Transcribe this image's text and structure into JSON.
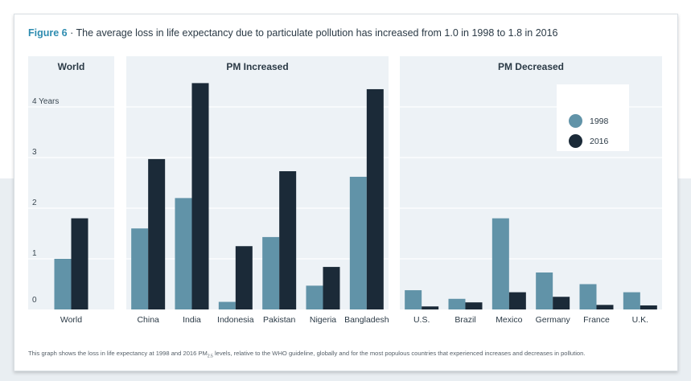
{
  "figure": {
    "label": "Figure 6",
    "separator": " · ",
    "title": "The average loss in life expectancy due to particulate pollution has increased from 1.0 in 1998 to 1.8 in 2016",
    "caption_before": "This graph shows the loss in life expectancy at 1998 and 2016 PM",
    "caption_sub": "2.5",
    "caption_after": " levels, relative to the WHO guideline, globally and for the most populous countries that experienced increases and decreases in pollution."
  },
  "colors": {
    "series_1998": "#6193a8",
    "series_2016": "#1b2a38",
    "panel_bg": "#edf2f6",
    "gridline": "#ffffff"
  },
  "chart_data": {
    "type": "bar",
    "ylim": [
      0,
      4
    ],
    "yticks": [
      {
        "value": 0,
        "label": "0"
      },
      {
        "value": 1,
        "label": "1"
      },
      {
        "value": 2,
        "label": "2"
      },
      {
        "value": 3,
        "label": "3"
      },
      {
        "value": 4,
        "label": "4 Years"
      }
    ],
    "grid": true,
    "legend_position": "top-right of PM Decreased panel",
    "series": [
      {
        "name": "1998"
      },
      {
        "name": "2016"
      }
    ],
    "panels": [
      {
        "title": "World",
        "categories": [
          "World"
        ],
        "values_1998": [
          1.0
        ],
        "values_2016": [
          1.8
        ]
      },
      {
        "title": "PM Increased",
        "categories": [
          "China",
          "India",
          "Indonesia",
          "Pakistan",
          "Nigeria",
          "Bangladesh"
        ],
        "values_1998": [
          1.6,
          2.2,
          0.15,
          1.43,
          0.47,
          2.62
        ],
        "values_2016": [
          2.97,
          4.47,
          1.25,
          2.73,
          0.84,
          4.35
        ]
      },
      {
        "title": "PM Decreased",
        "categories": [
          "U.S.",
          "Brazil",
          "Mexico",
          "Germany",
          "France",
          "U.K."
        ],
        "values_1998": [
          0.38,
          0.21,
          1.8,
          0.73,
          0.5,
          0.34
        ],
        "values_2016": [
          0.06,
          0.14,
          0.34,
          0.25,
          0.09,
          0.08
        ]
      }
    ]
  }
}
